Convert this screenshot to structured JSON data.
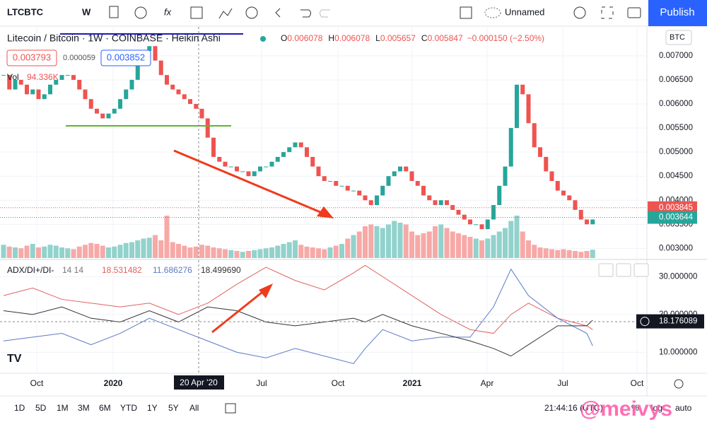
{
  "toolbar": {
    "symbol": "LTCBTC",
    "interval": "W",
    "layout": "Unnamed",
    "publish": "Publish"
  },
  "legend": {
    "name": "Litecoin / Bitcoin · 1W · COINBASE · Heikin Ashi",
    "ohlc": [
      {
        "label": "O",
        "value": "0.006078"
      },
      {
        "label": "H",
        "value": "0.006078"
      },
      {
        "label": "L",
        "value": "0.005657"
      },
      {
        "label": "C",
        "value": "0.005847"
      }
    ],
    "change": "−0.000150 (−2.50%)",
    "sell": "0.003793",
    "spread": "0.000059",
    "buy": "0.003852",
    "vol_label": "Vol",
    "vol_value": "94.336K"
  },
  "currency": "BTC",
  "chart": {
    "type": "candlestick",
    "closes": [
      0.0066,
      0.0063,
      0.0065,
      0.0064,
      0.0062,
      0.0063,
      0.0061,
      0.0062,
      0.0064,
      0.0065,
      0.0066,
      0.0066,
      0.0065,
      0.0063,
      0.0061,
      0.0059,
      0.0058,
      0.0057,
      0.0058,
      0.0059,
      0.0061,
      0.0063,
      0.0065,
      0.0068,
      0.0071,
      0.0072,
      0.0069,
      0.0066,
      0.0064,
      0.0063,
      0.0062,
      0.0061,
      0.006,
      0.0059,
      0.0057,
      0.0053,
      0.0049,
      0.0048,
      0.0047,
      0.0047,
      0.0046,
      0.0046,
      0.0045,
      0.0046,
      0.0047,
      0.0047,
      0.0048,
      0.0049,
      0.005,
      0.0051,
      0.0052,
      0.0051,
      0.0049,
      0.0047,
      0.0045,
      0.0044,
      0.0044,
      0.0043,
      0.0043,
      0.0042,
      0.0042,
      0.0041,
      0.004,
      0.0039,
      0.0041,
      0.0043,
      0.0045,
      0.0046,
      0.0047,
      0.0046,
      0.0044,
      0.0043,
      0.0041,
      0.004,
      0.0039,
      0.004,
      0.0039,
      0.0038,
      0.0037,
      0.0036,
      0.0035,
      0.0035,
      0.0034,
      0.0036,
      0.0039,
      0.0043,
      0.0047,
      0.0055,
      0.0064,
      0.0062,
      0.0056,
      0.0051,
      0.0049,
      0.0046,
      0.0044,
      0.0042,
      0.0041,
      0.004,
      0.0038,
      0.0036,
      0.0035,
      0.0036
    ],
    "volumes": [
      150,
      130,
      120,
      110,
      140,
      160,
      120,
      130,
      150,
      140,
      120,
      110,
      100,
      130,
      150,
      170,
      160,
      140,
      120,
      130,
      150,
      170,
      180,
      200,
      220,
      230,
      260,
      200,
      480,
      180,
      160,
      140,
      120,
      130,
      150,
      140,
      120,
      110,
      100,
      90,
      80,
      70,
      80,
      90,
      100,
      110,
      120,
      140,
      160,
      180,
      200,
      150,
      130,
      120,
      110,
      100,
      120,
      140,
      160,
      220,
      260,
      300,
      360,
      380,
      360,
      340,
      380,
      420,
      400,
      380,
      300,
      260,
      280,
      300,
      360,
      380,
      340,
      300,
      280,
      260,
      240,
      220,
      200,
      220,
      260,
      300,
      340,
      420,
      480,
      300,
      200,
      150,
      120,
      110,
      100,
      90,
      100,
      90,
      80,
      70,
      80,
      94
    ],
    "ylim": [
      0.0028,
      0.0076
    ],
    "yticks": [
      {
        "value": 0.003,
        "label": "0.003000"
      },
      {
        "value": 0.0035,
        "label": "0.003500"
      },
      {
        "value": 0.004,
        "label": "0.004000"
      },
      {
        "value": 0.0045,
        "label": "0.004500"
      },
      {
        "value": 0.005,
        "label": "0.005000"
      },
      {
        "value": 0.0055,
        "label": "0.005500"
      },
      {
        "value": 0.006,
        "label": "0.006000"
      },
      {
        "value": 0.0065,
        "label": "0.006500"
      },
      {
        "value": 0.007,
        "label": "0.007000"
      }
    ],
    "last_price": {
      "value": 0.003845,
      "label": "0.003845"
    },
    "bid_price": {
      "value": 0.003644,
      "label": "0.003644"
    }
  },
  "indicator": {
    "type": "line",
    "title": "ADX/DI+/DI-",
    "params": "14 14",
    "x": [
      0,
      5,
      10,
      15,
      20,
      25,
      30,
      35,
      40,
      45,
      50,
      55,
      60,
      62,
      65,
      70,
      75,
      80,
      84,
      87,
      90,
      95,
      100,
      101
    ],
    "series": [
      {
        "name": "18.531482",
        "color": "#e0625f",
        "values": [
          25,
          27,
          24,
          23,
          22,
          23,
          20,
          23,
          28,
          32.5,
          29,
          26.5,
          31,
          33,
          30,
          25,
          20,
          16,
          15,
          20,
          23,
          19,
          17,
          16
        ]
      },
      {
        "name": "11.686276",
        "color": "#5b79c6",
        "values": [
          13,
          14,
          15,
          12,
          15,
          19,
          16,
          13,
          10,
          8.5,
          11,
          9,
          7,
          11,
          16,
          13,
          14,
          14,
          22,
          32,
          25,
          19,
          15,
          11.7
        ]
      },
      {
        "name": "18.499690",
        "color": "#333333",
        "values": [
          21,
          20,
          22,
          19,
          18,
          21,
          18,
          22,
          21,
          18,
          17,
          18,
          19,
          18,
          20,
          17,
          15,
          13,
          11,
          9,
          12,
          17,
          17,
          18.5
        ]
      }
    ],
    "ylim": [
      5,
      34
    ],
    "yticks": [
      {
        "value": 10,
        "label": "10.000000"
      },
      {
        "value": 20,
        "label": "20.000000"
      },
      {
        "value": 30,
        "label": "30.000000"
      }
    ],
    "crosshair": {
      "value": 18.176089,
      "label": "18.176089"
    }
  },
  "time_axis": [
    "Oct",
    "2020",
    "Jul",
    "Oct",
    "2021",
    "Apr",
    "Jul",
    "Oct"
  ],
  "crosshair_date": "20 Apr '20",
  "bottom": {
    "ranges": [
      "1D",
      "5D",
      "1M",
      "3M",
      "6M",
      "YTD",
      "1Y",
      "5Y",
      "All"
    ],
    "clock": "21:44:16 (UTC)",
    "percent": "%",
    "log": "log",
    "auto": "auto"
  },
  "watermark": "@meivys"
}
